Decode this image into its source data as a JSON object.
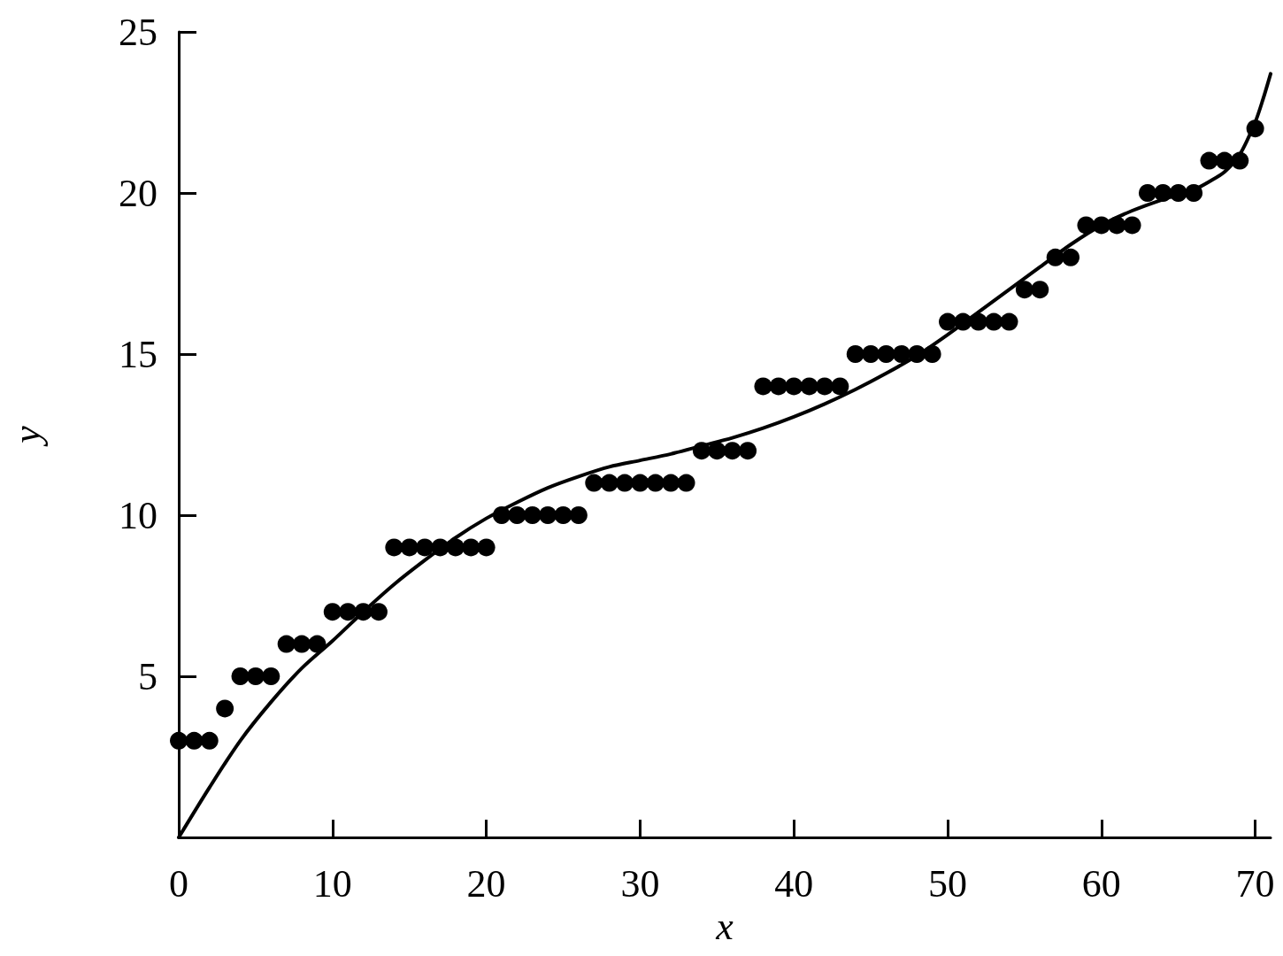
{
  "chart_data": {
    "type": "scatter",
    "xlabel": "x",
    "ylabel": "y",
    "xlim": [
      0,
      71
    ],
    "ylim": [
      0,
      25
    ],
    "xticks": [
      0,
      10,
      20,
      30,
      40,
      50,
      60,
      70
    ],
    "yticks": [
      5,
      10,
      15,
      20,
      25
    ],
    "grid": false,
    "series": [
      {
        "color": "#000000",
        "marker": "circle",
        "x": [
          0,
          1,
          2,
          3,
          4,
          5,
          6,
          7,
          8,
          9,
          10,
          11,
          12,
          13,
          14,
          15,
          16,
          17,
          18,
          19,
          20,
          21,
          22,
          23,
          24,
          25,
          26,
          27,
          28,
          29,
          30,
          31,
          32,
          33,
          34,
          35,
          36,
          37,
          38,
          39,
          40,
          41,
          42,
          43,
          44,
          45,
          46,
          47,
          48,
          49,
          50,
          51,
          52,
          53,
          54,
          55,
          56,
          57,
          58,
          59,
          60,
          61,
          62,
          63,
          64,
          65,
          66,
          67,
          68,
          69,
          70
        ],
        "values": [
          3,
          3,
          3,
          4,
          5,
          5,
          5,
          6,
          6,
          6,
          7,
          7,
          7,
          7,
          9,
          9,
          9,
          9,
          9,
          9,
          9,
          10,
          10,
          10,
          10,
          10,
          10,
          11,
          11,
          11,
          11,
          11,
          11,
          11,
          12,
          12,
          12,
          12,
          14,
          14,
          14,
          14,
          14,
          14,
          15,
          15,
          15,
          15,
          15,
          15,
          16,
          16,
          16,
          16,
          16,
          17,
          17,
          18,
          18,
          19,
          19,
          19,
          19,
          20,
          20,
          20,
          20,
          21,
          21,
          21,
          22
        ]
      },
      {
        "type": "line",
        "color": "#000000",
        "marker": "none",
        "line_style": "solid",
        "x": [
          0,
          2,
          4,
          6,
          8,
          10,
          12,
          14,
          16,
          18,
          20,
          22,
          24,
          26,
          28,
          30,
          32,
          34,
          36,
          38,
          40,
          42,
          44,
          46,
          48,
          50,
          52,
          54,
          56,
          58,
          60,
          62,
          64,
          66,
          67,
          68,
          69,
          70,
          70.5,
          71
        ],
        "values": [
          0,
          1.55,
          3.0,
          4.2,
          5.25,
          6.1,
          7.0,
          7.85,
          8.6,
          9.3,
          9.9,
          10.4,
          10.85,
          11.2,
          11.5,
          11.7,
          11.9,
          12.15,
          12.4,
          12.7,
          13.05,
          13.45,
          13.9,
          14.4,
          14.95,
          15.6,
          16.3,
          17.0,
          17.7,
          18.4,
          19.0,
          19.45,
          19.8,
          20.1,
          20.35,
          20.65,
          21.2,
          22.2,
          22.9,
          23.7
        ]
      }
    ]
  }
}
